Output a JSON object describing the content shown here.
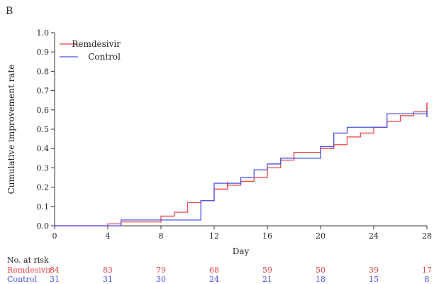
{
  "panel_label": "B",
  "chart_data": {
    "type": "line",
    "title": "",
    "xlabel": "Day",
    "ylabel": "Cumulative improvement rate",
    "xlim": [
      0,
      28
    ],
    "ylim": [
      0,
      1.0
    ],
    "x_ticks": [
      0,
      4,
      8,
      12,
      16,
      20,
      24,
      28
    ],
    "y_ticks": [
      0.0,
      0.1,
      0.2,
      0.3,
      0.4,
      0.5,
      0.6,
      0.7,
      0.8,
      0.9,
      1.0
    ],
    "y_tick_decimals": 1,
    "grid": false,
    "legend_position": "top-left",
    "step": true,
    "series": [
      {
        "name": "Remdesivir",
        "color": "#e8454a",
        "steps": [
          [
            0,
            0
          ],
          [
            4,
            0.01
          ],
          [
            5,
            0.02
          ],
          [
            8,
            0.05
          ],
          [
            9,
            0.07
          ],
          [
            10,
            0.12
          ],
          [
            11,
            0.13
          ],
          [
            12,
            0.19
          ],
          [
            13,
            0.21
          ],
          [
            14,
            0.23
          ],
          [
            15,
            0.25
          ],
          [
            16,
            0.3
          ],
          [
            17,
            0.34
          ],
          [
            18,
            0.38
          ],
          [
            20,
            0.4
          ],
          [
            21,
            0.42
          ],
          [
            22,
            0.46
          ],
          [
            23,
            0.48
          ],
          [
            24,
            0.51
          ],
          [
            25,
            0.54
          ],
          [
            26,
            0.57
          ],
          [
            27,
            0.59
          ],
          [
            28,
            0.62
          ]
        ],
        "censor_marks": [
          [
            13,
            0.21
          ],
          [
            28,
            0.62
          ]
        ]
      },
      {
        "name": "Control",
        "color": "#4a52e3",
        "steps": [
          [
            0,
            0
          ],
          [
            5,
            0.03
          ],
          [
            11,
            0.13
          ],
          [
            12,
            0.22
          ],
          [
            14,
            0.25
          ],
          [
            15,
            0.29
          ],
          [
            16,
            0.32
          ],
          [
            17,
            0.35
          ],
          [
            18,
            0.35
          ],
          [
            20,
            0.41
          ],
          [
            21,
            0.48
          ],
          [
            22,
            0.51
          ],
          [
            25,
            0.58
          ],
          [
            28,
            0.58
          ]
        ],
        "censor_marks": [
          [
            28,
            0.58
          ]
        ]
      }
    ]
  },
  "risk_table": {
    "heading": "No. at risk",
    "days": [
      0,
      4,
      8,
      12,
      16,
      20,
      24,
      28
    ],
    "rows": [
      {
        "label": "Remdesivir",
        "color": "#e8454a",
        "counts": [
          84,
          83,
          79,
          68,
          59,
          50,
          39,
          17
        ]
      },
      {
        "label": "Control",
        "color": "#4a52e3",
        "counts": [
          31,
          31,
          30,
          24,
          21,
          18,
          15,
          8
        ]
      }
    ]
  }
}
